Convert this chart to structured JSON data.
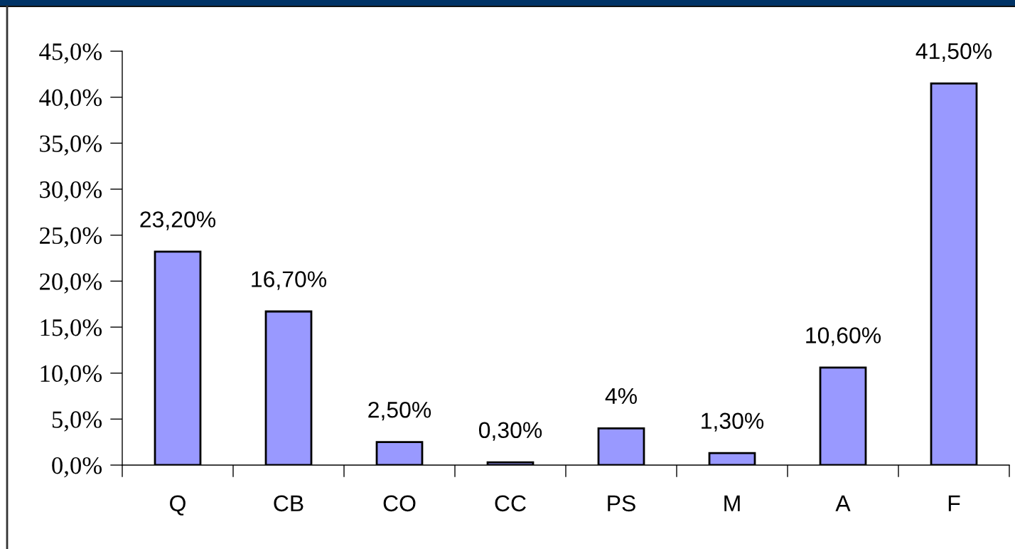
{
  "chart_data": {
    "type": "bar",
    "categories": [
      "Q",
      "CB",
      "CO",
      "CC",
      "PS",
      "M",
      "A",
      "F"
    ],
    "values": [
      23.2,
      16.7,
      2.5,
      0.3,
      4,
      1.3,
      10.6,
      41.5
    ],
    "value_labels": [
      "23,20%",
      "16,70%",
      "2,50%",
      "0,30%",
      "4%",
      "1,30%",
      "10,60%",
      "41,50%"
    ],
    "color": "#9999ff",
    "ylim": [
      0,
      45
    ],
    "yticks": [
      {
        "value": 0,
        "label": "0,0%"
      },
      {
        "value": 5,
        "label": "5,0%"
      },
      {
        "value": 10,
        "label": "10,0%"
      },
      {
        "value": 15,
        "label": "15,0%"
      },
      {
        "value": 20,
        "label": "20,0%"
      },
      {
        "value": 25,
        "label": "25,0%"
      },
      {
        "value": 30,
        "label": "30,0%"
      },
      {
        "value": 35,
        "label": "35,0%"
      },
      {
        "value": 40,
        "label": "40,0%"
      },
      {
        "value": 45,
        "label": "45,0%"
      }
    ],
    "grid": false
  }
}
